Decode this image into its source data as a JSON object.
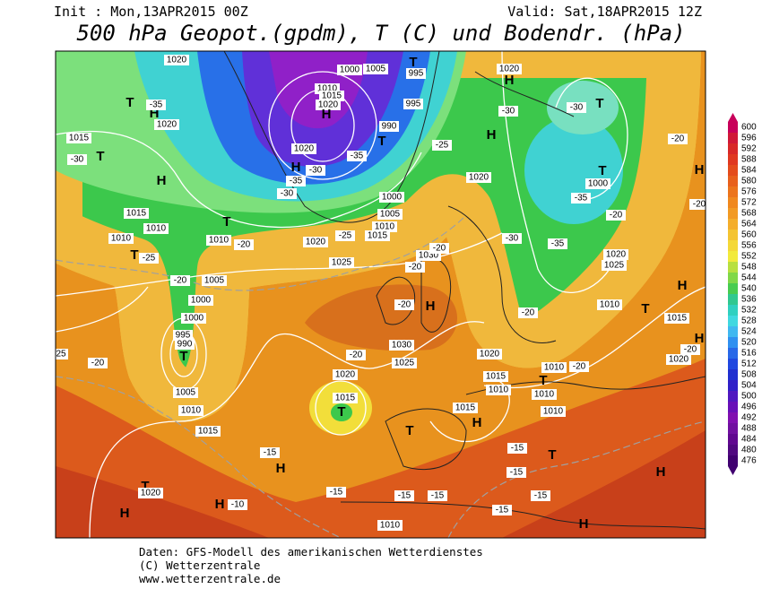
{
  "header": {
    "init": "Init : Mon,13APR2015 00Z",
    "valid": "Valid: Sat,18APR2015 12Z",
    "title": "500 hPa Geopot.(gpdm), T (C) und Bodendr. (hPa)"
  },
  "footer": [
    "Daten: GFS-Modell des amerikanischen Wetterdienstes",
    "(C) Wetterzentrale",
    "www.wetterzentrale.de"
  ],
  "colorbar": {
    "labels": [
      600,
      596,
      592,
      588,
      584,
      580,
      576,
      572,
      568,
      564,
      560,
      556,
      552,
      548,
      544,
      540,
      536,
      532,
      528,
      524,
      520,
      516,
      512,
      508,
      504,
      500,
      496,
      492,
      488,
      484,
      480,
      476
    ],
    "colors": [
      "#c8005a",
      "#d01838",
      "#d82828",
      "#e03820",
      "#e44c1c",
      "#e8601c",
      "#ec741c",
      "#f0881e",
      "#f29a24",
      "#f4ae2c",
      "#f4c432",
      "#f4d838",
      "#f2ea3c",
      "#b8e040",
      "#80d848",
      "#48cc50",
      "#30c890",
      "#30d0c0",
      "#40d8e0",
      "#40b8f0",
      "#3090f0",
      "#2868e8",
      "#2048e0",
      "#2030d0",
      "#3020c8",
      "#5018c0",
      "#6810b8",
      "#8010b0",
      "#7010a0",
      "#600890",
      "#500880",
      "#400070"
    ]
  },
  "map_labels": [
    "1020",
    "T",
    "H",
    "1020",
    "-35",
    "1015",
    "-30",
    "T",
    "H",
    "1015",
    "1010",
    "1010",
    "T",
    "-25",
    "T",
    "1010",
    "-20",
    "1020",
    "1025",
    "-20",
    "1005",
    "1000",
    "1000",
    "995",
    "990",
    "T",
    "-20",
    "25",
    "1005",
    "1010",
    "1015",
    "-15",
    "H",
    "T",
    "1020",
    "H",
    "H",
    "-10",
    "-15",
    "1020",
    "1015",
    "T",
    "T",
    "-15",
    "1010",
    "-15",
    "1015",
    "H",
    "-15",
    "T",
    "-15",
    "-15",
    "-15",
    "H",
    "H",
    "1030",
    "1025",
    "-20",
    "H",
    "-20",
    "1030",
    "-20",
    "1020",
    "1015",
    "1010",
    "T",
    "1010",
    "1010",
    "1010",
    "-20",
    "H",
    "T",
    "1015",
    "1010",
    "-20",
    "H",
    "1020",
    "-20",
    "1025",
    "1020",
    "-20",
    "1000",
    "T",
    "-35",
    "T",
    "-30",
    "-30",
    "H",
    "1020",
    "H",
    "1020",
    "-25",
    "-30",
    "-35",
    "995",
    "T",
    "995",
    "1005",
    "1000",
    "1010",
    "1015",
    "1020",
    "H",
    "990",
    "T",
    "-35",
    "1020",
    "H",
    "-30",
    "-35",
    "-30",
    "1000",
    "1005",
    "1010",
    "1015",
    "-25",
    "-20",
    "-20",
    "-20",
    "H"
  ]
}
